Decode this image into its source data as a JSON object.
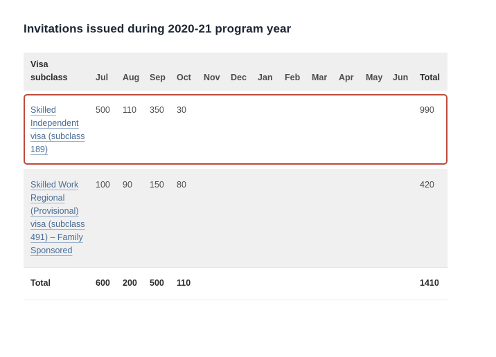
{
  "page_title": "Invitations issued during 2020-21 program year",
  "table": {
    "header": {
      "subclass_label": "Visa subclass",
      "months": [
        "Jul",
        "Aug",
        "Sep",
        "Oct",
        "Nov",
        "Dec",
        "Jan",
        "Feb",
        "Mar",
        "Apr",
        "May",
        "Jun"
      ],
      "total_label": "Total"
    },
    "rows": [
      {
        "name": "Skilled Independent visa (subclass 189)",
        "is_link": true,
        "highlighted": true,
        "monthly": [
          "500",
          "110",
          "350",
          "30",
          "",
          "",
          "",
          "",
          "",
          "",
          "",
          ""
        ],
        "total": "990"
      },
      {
        "name": "Skilled Work Regional (Provisional) visa (subclass 491) – Family Sponsored",
        "is_link": true,
        "highlighted": false,
        "monthly": [
          "100",
          "90",
          "150",
          "80",
          "",
          "",
          "",
          "",
          "",
          "",
          "",
          ""
        ],
        "total": "420"
      }
    ],
    "footer": {
      "label": "Total",
      "monthly": [
        "600",
        "200",
        "500",
        "110",
        "",
        "",
        "",
        "",
        "",
        "",
        "",
        ""
      ],
      "total": "1410"
    }
  },
  "colors": {
    "highlight_border": "#bc4b3c",
    "link_text": "#4a6e96",
    "header_background": "#efefef",
    "stripe_row_background": "#f0f0f0",
    "title_text": "#1c2633",
    "body_text": "#4d4d4d",
    "bold_text": "#2b2b2b"
  }
}
